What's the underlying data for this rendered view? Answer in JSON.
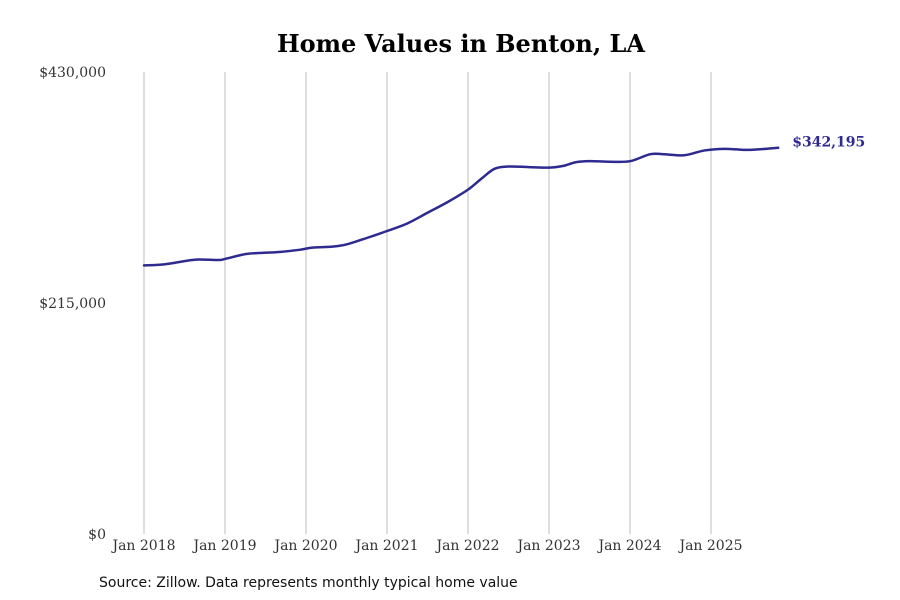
{
  "colors": {
    "line": "#2e2a8f",
    "grid": "#bdbdbd"
  },
  "footer": {
    "source": "Source: Zillow. Data represents monthly typical home value"
  },
  "chart_data": {
    "type": "line",
    "title": "Home Values in Benton, LA",
    "xlabel": "",
    "ylabel": "",
    "ylim": [
      0,
      430000
    ],
    "xlim": [
      2018.0,
      2026.0
    ],
    "yticks": [
      {
        "value": 0,
        "label": "$0"
      },
      {
        "value": 215000,
        "label": "$215,000"
      },
      {
        "value": 430000,
        "label": "$430,000"
      }
    ],
    "xticks": [
      {
        "value": 2018,
        "label": "Jan 2018"
      },
      {
        "value": 2019,
        "label": "Jan 2019"
      },
      {
        "value": 2020,
        "label": "Jan 2020"
      },
      {
        "value": 2021,
        "label": "Jan 2021"
      },
      {
        "value": 2022,
        "label": "Jan 2022"
      },
      {
        "value": 2023,
        "label": "Jan 2023"
      },
      {
        "value": 2024,
        "label": "Jan 2024"
      },
      {
        "value": 2025,
        "label": "Jan 2025"
      }
    ],
    "grid": "vertical",
    "end_label": "$342,195",
    "series": [
      {
        "name": "Typical home value",
        "x": [
          2018.0,
          2018.25,
          2018.5,
          2018.67,
          2018.92,
          2019.0,
          2019.25,
          2019.42,
          2019.67,
          2019.92,
          2020.08,
          2020.33,
          2020.5,
          2020.75,
          2021.0,
          2021.25,
          2021.5,
          2021.75,
          2022.0,
          2022.17,
          2022.33,
          2022.5,
          2022.75,
          2023.0,
          2023.17,
          2023.33,
          2023.5,
          2023.75,
          2024.0,
          2024.25,
          2024.42,
          2024.67,
          2024.92,
          2025.17,
          2025.42,
          2025.58,
          2025.83
        ],
        "y": [
          250000,
          251000,
          254000,
          255500,
          255000,
          256000,
          260500,
          261500,
          262500,
          264500,
          266500,
          267500,
          269500,
          275500,
          282000,
          289000,
          299000,
          309000,
          320500,
          331000,
          340000,
          342000,
          341500,
          341000,
          342500,
          346000,
          347000,
          346500,
          347000,
          353500,
          353500,
          352500,
          357000,
          358500,
          357500,
          358000,
          342195
        ]
      }
    ]
  }
}
